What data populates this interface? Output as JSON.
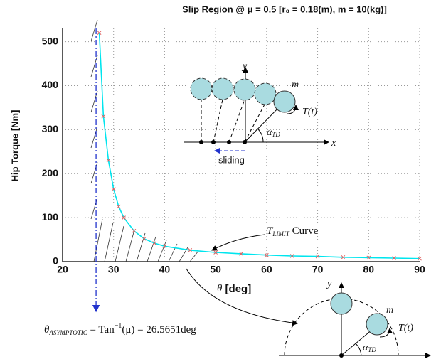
{
  "chart_data": {
    "type": "line",
    "title": "Slip Region @ μ = 0.5  [r₀ = 0.18(m), m = 10(kg)]",
    "y_label": "Hip  Torque [Nm]",
    "x_label": [
      "θ",
      " [deg]"
    ],
    "x": [
      27.2,
      28,
      29,
      30,
      31,
      32,
      34,
      36,
      38,
      40,
      45,
      50,
      55,
      60,
      65,
      70,
      75,
      80,
      85,
      90
    ],
    "series": [
      {
        "color": "#00e5ee",
        "marker_color": "#e06060",
        "values": [
          520,
          330,
          230,
          165,
          125,
          100,
          70,
          52,
          42,
          35,
          26,
          21,
          18,
          15,
          13,
          12,
          10,
          9,
          8,
          7
        ]
      }
    ],
    "xlim": [
      20,
      90
    ],
    "xticks": [
      20,
      30,
      40,
      50,
      60,
      70,
      80,
      90
    ],
    "ylim": [
      0,
      530
    ],
    "yticks": [
      0,
      100,
      200,
      300,
      400,
      500
    ],
    "grid": true,
    "asymptote": {
      "value": 26.5651,
      "color": "#2233cc",
      "label_parts": [
        "θ",
        "ASYMPTOTIC",
        " = Tan",
        "−1",
        "(μ) = 26.5651deg"
      ]
    },
    "curve_label": [
      "T",
      "LIMIT",
      " Curve"
    ],
    "diagram_top": {
      "y": "y",
      "x": "x",
      "m": "m",
      "torque": "T(t)",
      "angle": [
        "α",
        "TD"
      ],
      "sliding": "sliding"
    },
    "diagram_bottom": {
      "y": "y",
      "m": "m",
      "torque": "T(t)",
      "angle": [
        "α",
        "TD"
      ]
    }
  }
}
